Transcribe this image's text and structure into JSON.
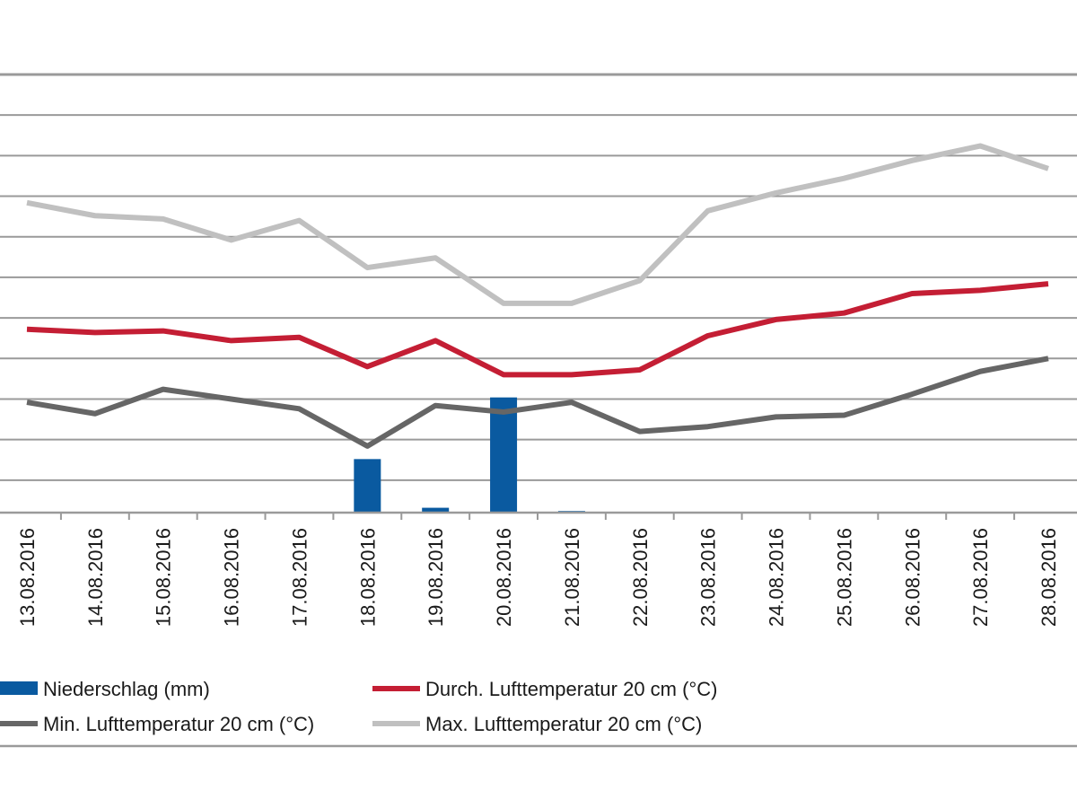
{
  "chart_data": {
    "type": "line",
    "categories": [
      "13.08.2016",
      "14.08.2016",
      "15.08.2016",
      "16.08.2016",
      "17.08.2016",
      "18.08.2016",
      "19.08.2016",
      "20.08.2016",
      "21.08.2016",
      "22.08.2016",
      "23.08.2016",
      "24.08.2016",
      "25.08.2016",
      "26.08.2016",
      "27.08.2016",
      "28.08.2016"
    ],
    "title": "",
    "xlabel": "",
    "ylabel": "",
    "y_axis_labels_visible": false,
    "grid": true,
    "legend_position": "bottom",
    "series": [
      {
        "name": "Niederschlag (mm)",
        "kind": "bar",
        "color": "#0a5aa0",
        "values": [
          0,
          0,
          0,
          0,
          0,
          3.3,
          0.3,
          7.1,
          0.1,
          0,
          0,
          0,
          0,
          0,
          0,
          0
        ]
      },
      {
        "name": "Durch. Lufttemperatur 20 cm (°C)",
        "kind": "line",
        "color": "#c41e34",
        "values": [
          11.3,
          11.1,
          11.2,
          10.6,
          10.8,
          9.0,
          10.6,
          8.5,
          8.5,
          8.8,
          10.9,
          11.9,
          12.3,
          13.5,
          13.7,
          14.1
        ]
      },
      {
        "name": "Min. Lufttemperatur 20 cm (°C)",
        "kind": "line",
        "color": "#666666",
        "values": [
          6.8,
          6.1,
          7.6,
          7.0,
          6.4,
          4.1,
          6.6,
          6.2,
          6.8,
          5.0,
          5.3,
          5.9,
          6.0,
          7.3,
          8.7,
          9.5
        ]
      },
      {
        "name": "Max. Lufttemperatur 20 cm (°C)",
        "kind": "line",
        "color": "#c0c0c0",
        "values": [
          19.1,
          18.3,
          18.1,
          16.8,
          18.0,
          15.1,
          15.7,
          12.9,
          12.9,
          14.3,
          18.6,
          19.7,
          20.6,
          21.7,
          22.6,
          21.2
        ]
      }
    ],
    "ylim": [
      0,
      27
    ]
  }
}
